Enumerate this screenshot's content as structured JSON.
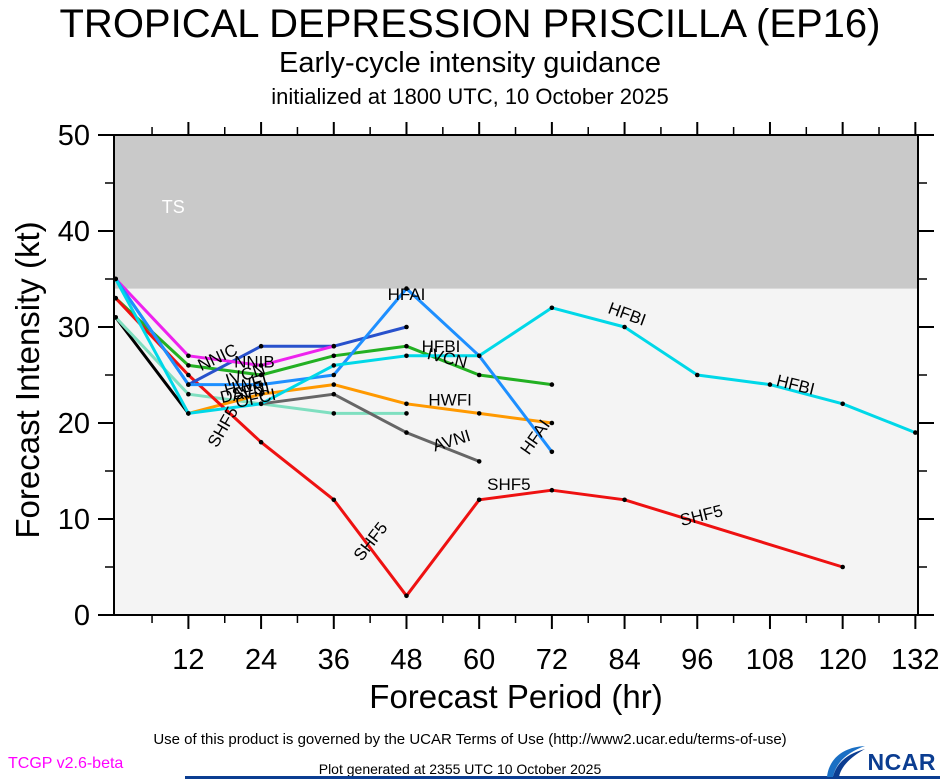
{
  "header": {
    "title": "TROPICAL DEPRESSION PRISCILLA (EP16)",
    "subtitle": "Early-cycle intensity guidance",
    "init_line": "initialized at 1800 UTC, 10 October 2025"
  },
  "axes": {
    "x_label": "Forecast Period (hr)",
    "y_label": "Forecast Intensity (kt)",
    "x_range": [
      0,
      132.5
    ],
    "y_range": [
      0,
      50
    ],
    "x_major_ticks": [
      12,
      24,
      36,
      48,
      60,
      72,
      84,
      96,
      108,
      120,
      132
    ],
    "x_minor_ticks": [
      6,
      18,
      30,
      42,
      54,
      66,
      78,
      90,
      102,
      114,
      126
    ],
    "y_major_ticks": [
      0,
      10,
      20,
      30,
      40,
      50
    ],
    "y_minor_ticks": [
      5,
      15,
      25,
      35,
      45
    ],
    "plot_bg_color": "#f4f4f4",
    "axis_color": "#000000"
  },
  "ts_band": {
    "label": "TS",
    "from_kt": 34,
    "to_kt": 50,
    "color": "#c9c9c9",
    "label_color": "#ffffff",
    "label_hr": 7.6,
    "label_kt": 41.9
  },
  "chart_data": {
    "type": "line",
    "x_unit": "forecast hour",
    "y_unit": "kt",
    "title": "Early-cycle intensity guidance for TD Priscilla (EP16)",
    "series": [
      {
        "name": "OFCI",
        "color": "#000000",
        "points": [
          [
            0,
            31
          ],
          [
            12,
            21
          ]
        ],
        "labels": [
          {
            "text": "OFCI",
            "hr": 23.3,
            "kt": 22.0,
            "rot": -12
          }
        ]
      },
      {
        "name": "DSF5",
        "color": "#7fdfc0",
        "points": [
          [
            0,
            31
          ],
          [
            12,
            23
          ],
          [
            24,
            22
          ],
          [
            36,
            21
          ],
          [
            48,
            21
          ]
        ],
        "labels": [
          {
            "text": "DSF5",
            "hr": 21.0,
            "kt": 22.6,
            "rot": -14
          }
        ]
      },
      {
        "name": "AVNI",
        "color": "#666666",
        "points": [
          [
            24,
            22
          ],
          [
            36,
            23
          ],
          [
            48,
            19
          ],
          [
            60,
            16
          ]
        ],
        "labels": [
          {
            "text": "AVNI",
            "hr": 22.5,
            "kt": 22.7,
            "rot": -12
          },
          {
            "text": "AVNI",
            "hr": 55.7,
            "kt": 17.6,
            "rot": -17
          }
        ]
      },
      {
        "name": "HWFI",
        "color": "#ff9900",
        "points": [
          [
            12,
            21
          ],
          [
            24,
            23
          ],
          [
            36,
            24
          ],
          [
            48,
            22
          ],
          [
            60,
            21
          ],
          [
            72,
            20
          ]
        ],
        "labels": [
          {
            "text": "HWFI",
            "hr": 21.7,
            "kt": 23.4,
            "rot": -15
          },
          {
            "text": "HWFI",
            "hr": 55.2,
            "kt": 21.8,
            "rot": 0
          }
        ]
      },
      {
        "name": "IVCN",
        "color": "#22b022",
        "points": [
          [
            0,
            33
          ],
          [
            12,
            26
          ],
          [
            24,
            25
          ],
          [
            36,
            27
          ],
          [
            48,
            28
          ],
          [
            60,
            25
          ],
          [
            72,
            24
          ]
        ],
        "labels": [
          {
            "text": "IVCN",
            "hr": 21.7,
            "kt": 24.5,
            "rot": -18
          },
          {
            "text": "IVCN",
            "hr": 54.5,
            "kt": 26.2,
            "rot": 14
          }
        ]
      },
      {
        "name": "SHF5",
        "color": "#ee1111",
        "points": [
          [
            0,
            33
          ],
          [
            12,
            25
          ],
          [
            24,
            18
          ],
          [
            36,
            12
          ],
          [
            48,
            2
          ],
          [
            60,
            12
          ],
          [
            72,
            13
          ],
          [
            84,
            12
          ],
          [
            120,
            5
          ]
        ],
        "labels": [
          {
            "text": "SHF5",
            "hr": 18.5,
            "kt": 19.3,
            "rot": -60
          },
          {
            "text": "SHF5",
            "hr": 42.8,
            "kt": 7.3,
            "rot": -52
          },
          {
            "text": "SHF5",
            "hr": 64.9,
            "kt": 13.0,
            "rot": 0
          },
          {
            "text": "SHF5",
            "hr": 96.9,
            "kt": 9.8,
            "rot": -14
          }
        ]
      },
      {
        "name": "NNIC",
        "color": "#2851cc",
        "points": [
          [
            0,
            35
          ],
          [
            12,
            24
          ],
          [
            24,
            28
          ],
          [
            36,
            28
          ],
          [
            48,
            30
          ]
        ],
        "labels": [
          {
            "text": "NNIC",
            "hr": 17.2,
            "kt": 26.3,
            "rot": -25
          }
        ]
      },
      {
        "name": "NNIB",
        "color": "#ee22ee",
        "points": [
          [
            0,
            35
          ],
          [
            12,
            27
          ],
          [
            24,
            26
          ],
          [
            36,
            28
          ]
        ],
        "labels": [
          {
            "text": "NNIB",
            "hr": 22.9,
            "kt": 25.8,
            "rot": 0
          }
        ]
      },
      {
        "name": "HFAI",
        "color": "#1e8fff",
        "points": [
          [
            0,
            35
          ],
          [
            12,
            24
          ],
          [
            24,
            24
          ],
          [
            36,
            25
          ],
          [
            48,
            34
          ],
          [
            60,
            27
          ],
          [
            72,
            17
          ]
        ],
        "labels": [
          {
            "text": "HFAI",
            "hr": 48.0,
            "kt": 32.8,
            "rot": 0
          },
          {
            "text": "HFAI",
            "hr": 70.0,
            "kt": 18.2,
            "rot": -55
          }
        ]
      },
      {
        "name": "HFBI",
        "color": "#00d8e8",
        "points": [
          [
            0,
            35
          ],
          [
            12,
            21
          ],
          [
            24,
            22
          ],
          [
            36,
            26
          ],
          [
            48,
            27
          ],
          [
            60,
            27
          ],
          [
            72,
            32
          ],
          [
            84,
            30
          ],
          [
            96,
            25
          ],
          [
            108,
            24
          ],
          [
            120,
            22
          ],
          [
            132,
            19
          ]
        ],
        "labels": [
          {
            "text": "HFBI",
            "hr": 53.7,
            "kt": 27.4,
            "rot": 0
          },
          {
            "text": "HFBI",
            "hr": 84.1,
            "kt": 30.8,
            "rot": 20
          },
          {
            "text": "HFBI",
            "hr": 112.0,
            "kt": 23.4,
            "rot": 14
          }
        ]
      }
    ]
  },
  "footer": {
    "terms": "Use of this product is governed by the UCAR Terms of Use (http://www2.ucar.edu/terms-of-use)",
    "tcgp": "TCGP v2.6-beta",
    "generated": "Plot generated at 2355 UTC   10 October 2025"
  },
  "logo": {
    "text": "NCAR"
  }
}
